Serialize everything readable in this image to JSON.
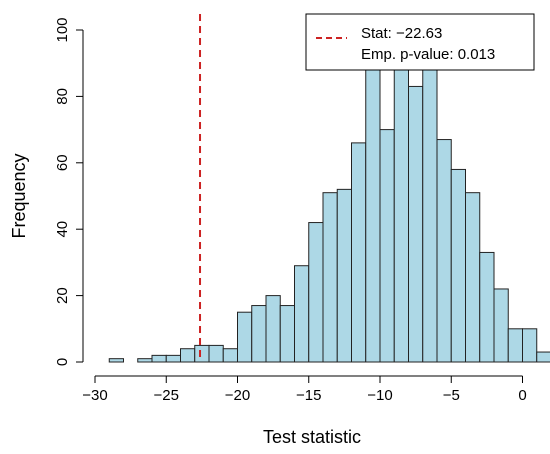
{
  "chart_data": {
    "type": "bar",
    "subtype": "histogram",
    "xlabel": "Test statistic",
    "ylabel": "Frequency",
    "xlim": [
      -30,
      1
    ],
    "ylim": [
      0,
      100
    ],
    "x_ticks": [
      -30,
      -25,
      -20,
      -15,
      -10,
      -5,
      0
    ],
    "x_tick_labels": [
      "−30",
      "−25",
      "−20",
      "−15",
      "−10",
      "−5",
      "0"
    ],
    "y_ticks": [
      0,
      20,
      40,
      60,
      80,
      100
    ],
    "y_tick_labels": [
      "0",
      "20",
      "40",
      "60",
      "80",
      "100"
    ],
    "bin_width": 1,
    "bin_start": -29,
    "frequencies": [
      1,
      0,
      1,
      2,
      2,
      4,
      5,
      5,
      4,
      15,
      17,
      20,
      17,
      29,
      42,
      51,
      52,
      66,
      89,
      70,
      89,
      83,
      89,
      67,
      58,
      51,
      33,
      22,
      10,
      10,
      3
    ],
    "bar_color": "#add8e6",
    "bar_edge_color": "#222222",
    "reference_line": {
      "x": -22.63,
      "color": "#cc2222",
      "style": "dashed"
    },
    "legend": {
      "position": "top-right",
      "line_label": "Stat: −22.63",
      "text_label": "Emp. p-value: 0.013"
    }
  }
}
